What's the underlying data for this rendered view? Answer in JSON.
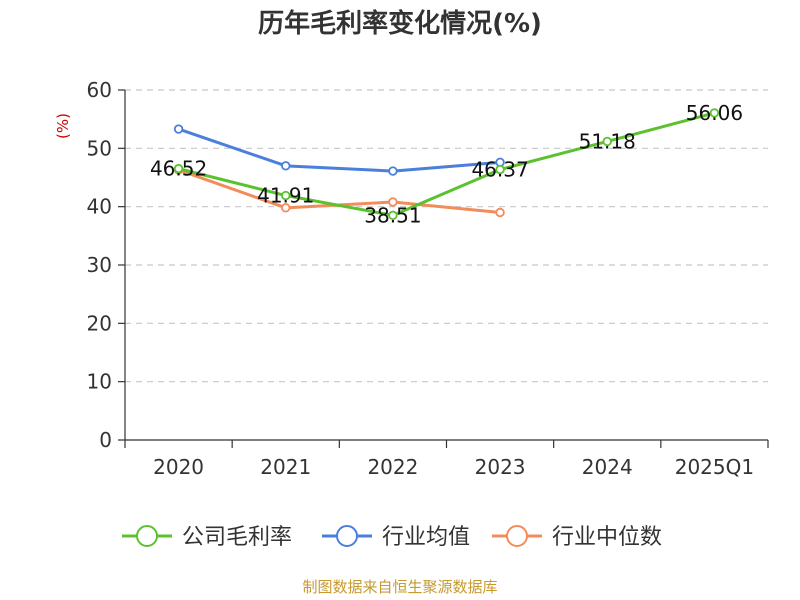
{
  "chart_data": {
    "type": "line",
    "title": "历年毛利率变化情况(%)",
    "ylabel": "(%)",
    "categories": [
      "2020",
      "2021",
      "2022",
      "2023",
      "2024",
      "2025Q1"
    ],
    "y_ticks": [
      "0",
      "10",
      "20",
      "30",
      "40",
      "50",
      "60"
    ],
    "ylim": [
      0,
      60
    ],
    "grid": true,
    "legend_position": "bottom",
    "series": [
      {
        "name": "公司毛利率",
        "color": "#5cc12f",
        "values": [
          46.52,
          41.91,
          38.51,
          46.37,
          51.18,
          56.06
        ],
        "labels": [
          "46.52",
          "41.91",
          "38.51",
          "46.37",
          "51.18",
          "56.06"
        ]
      },
      {
        "name": "行业均值",
        "color": "#4a7fdc",
        "values": [
          53.3,
          47.0,
          46.1,
          47.6,
          null,
          null
        ]
      },
      {
        "name": "行业中位数",
        "color": "#f28c5a",
        "values": [
          46.3,
          39.8,
          40.8,
          39.0,
          null,
          null
        ]
      }
    ]
  },
  "source": "制图数据来自恒生聚源数据库"
}
